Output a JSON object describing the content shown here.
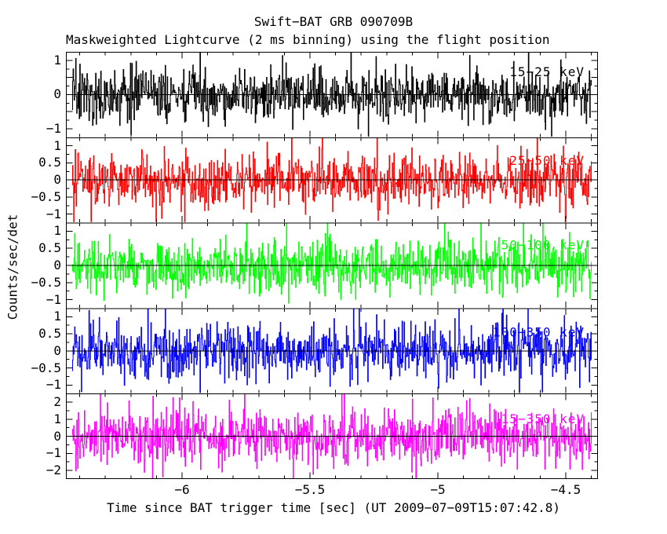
{
  "figure": {
    "title": "Swift−BAT GRB 090709B",
    "subtitle": "Maskweighted Lightcurve (2 ms binning) using the flight position",
    "x_axis_label": "Time since BAT trigger time [sec] (UT 2009−07−09T15:07:42.8)",
    "y_axis_label": "Counts/sec/det",
    "background_color": "#ffffff",
    "frame_color": "#000000"
  },
  "chart_data": {
    "type": "line",
    "title": "Swift−BAT GRB 090709B",
    "subtitle": "Maskweighted Lightcurve (2 ms binning) using the flight position",
    "xlabel": "Time since BAT trigger time [sec] (UT 2009−07−09T15:07:42.8)",
    "ylabel": "Counts/sec/det",
    "grid": false,
    "legend_position": "inside-right-of-each-panel",
    "description": "Five vertically stacked mask-weighted lightcurve panels of zero-mean detector noise at 2 ms binning; no burst features visible in this pre-trigger window.",
    "x": {
      "range": [
        -6.454,
        -4.374
      ],
      "data_start": -6.43,
      "data_end": -4.4,
      "ticks": [
        -6,
        -5.5,
        -5,
        -4.5
      ],
      "tick_labels": [
        "−6",
        "−5.5",
        "−5",
        "−4.5"
      ],
      "minor_tick_step": 0.1,
      "major_tick_step": 0.5,
      "bin_width_sec": 0.002
    },
    "series": [
      {
        "name": "15−25 keV",
        "color": "#000000",
        "y_range": [
          -1.25,
          1.25
        ],
        "y_ticks": [
          1,
          0,
          -1
        ],
        "y_tick_labels": [
          "1",
          "0",
          "−1"
        ],
        "y_minor_step": 0.25,
        "y_major_step": 0.5,
        "noise_sigma": 0.38,
        "seed": 20901,
        "label_y_offset": 31
      },
      {
        "name": "25−50 keV",
        "color": "#ff0000",
        "y_range": [
          -1.25,
          1.25
        ],
        "y_ticks": [
          1,
          0.5,
          0,
          -0.5,
          -1
        ],
        "y_tick_labels": [
          "1",
          "0.5",
          "0",
          "−0.5",
          "−1"
        ],
        "y_minor_step": 0.25,
        "y_major_step": 0.5,
        "noise_sigma": 0.38,
        "seed": 20902,
        "label_y_offset": 35
      },
      {
        "name": "50−100 keV",
        "color": "#00ff00",
        "y_range": [
          -1.25,
          1.25
        ],
        "y_ticks": [
          1,
          0.5,
          0,
          -0.5,
          -1
        ],
        "y_tick_labels": [
          "1",
          "0.5",
          "0",
          "−0.5",
          "−1"
        ],
        "y_minor_step": 0.25,
        "y_major_step": 0.5,
        "noise_sigma": 0.38,
        "seed": 20903,
        "label_y_offset": 34
      },
      {
        "name": "100−350 keV",
        "color": "#0000ff",
        "y_range": [
          -1.25,
          1.25
        ],
        "y_ticks": [
          1,
          0.5,
          0,
          -0.5,
          -1
        ],
        "y_tick_labels": [
          "1",
          "0.5",
          "0",
          "−0.5",
          "−1"
        ],
        "y_minor_step": 0.25,
        "y_major_step": 0.5,
        "noise_sigma": 0.38,
        "seed": 20904,
        "label_y_offset": 36
      },
      {
        "name": "15−350 keV",
        "color": "#ff00ff",
        "y_range": [
          -2.5,
          2.5
        ],
        "y_ticks": [
          2,
          1,
          0,
          -1,
          -2
        ],
        "y_tick_labels": [
          "2",
          "1",
          "0",
          "−1",
          "−2"
        ],
        "y_minor_step": 0.5,
        "y_major_step": 1.0,
        "noise_sigma": 0.78,
        "seed": 20905,
        "label_y_offset": 38
      }
    ]
  }
}
